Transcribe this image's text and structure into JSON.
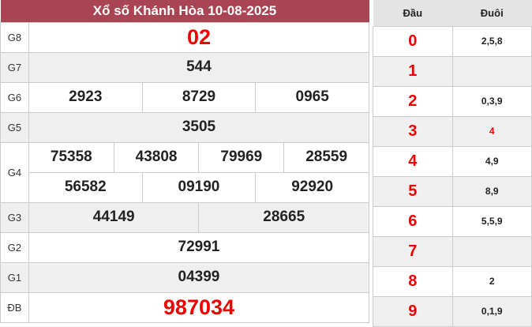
{
  "title": "Xổ số Khánh Hòa 10-08-2025",
  "prizes": {
    "g8": {
      "label": "G8",
      "values": [
        "02"
      ]
    },
    "g7": {
      "label": "G7",
      "values": [
        "544"
      ]
    },
    "g6": {
      "label": "G6",
      "values": [
        "2923",
        "8729",
        "0965"
      ]
    },
    "g5": {
      "label": "G5",
      "values": [
        "3505"
      ]
    },
    "g4": {
      "label": "G4",
      "values": [
        "75358",
        "43808",
        "79969",
        "28559",
        "56582",
        "09190",
        "92920"
      ]
    },
    "g3": {
      "label": "G3",
      "values": [
        "44149",
        "28665"
      ]
    },
    "g2": {
      "label": "G2",
      "values": [
        "72991"
      ]
    },
    "g1": {
      "label": "G1",
      "values": [
        "04399"
      ]
    },
    "db": {
      "label": "ĐB",
      "values": [
        "987034"
      ]
    }
  },
  "loto": {
    "head_label": "Đầu",
    "tail_label": "Đuôi",
    "rows": [
      {
        "head": "0",
        "tail": "2,5,8"
      },
      {
        "head": "1",
        "tail": ""
      },
      {
        "head": "2",
        "tail": "0,3,9"
      },
      {
        "head": "3",
        "tail": "4"
      },
      {
        "head": "4",
        "tail": "4,9"
      },
      {
        "head": "5",
        "tail": "8,9"
      },
      {
        "head": "6",
        "tail": "5,5,9"
      },
      {
        "head": "7",
        "tail": ""
      },
      {
        "head": "8",
        "tail": "2"
      },
      {
        "head": "9",
        "tail": "0,1,9"
      }
    ]
  },
  "colors": {
    "header": "#a94452",
    "highlight": "#e00000"
  }
}
